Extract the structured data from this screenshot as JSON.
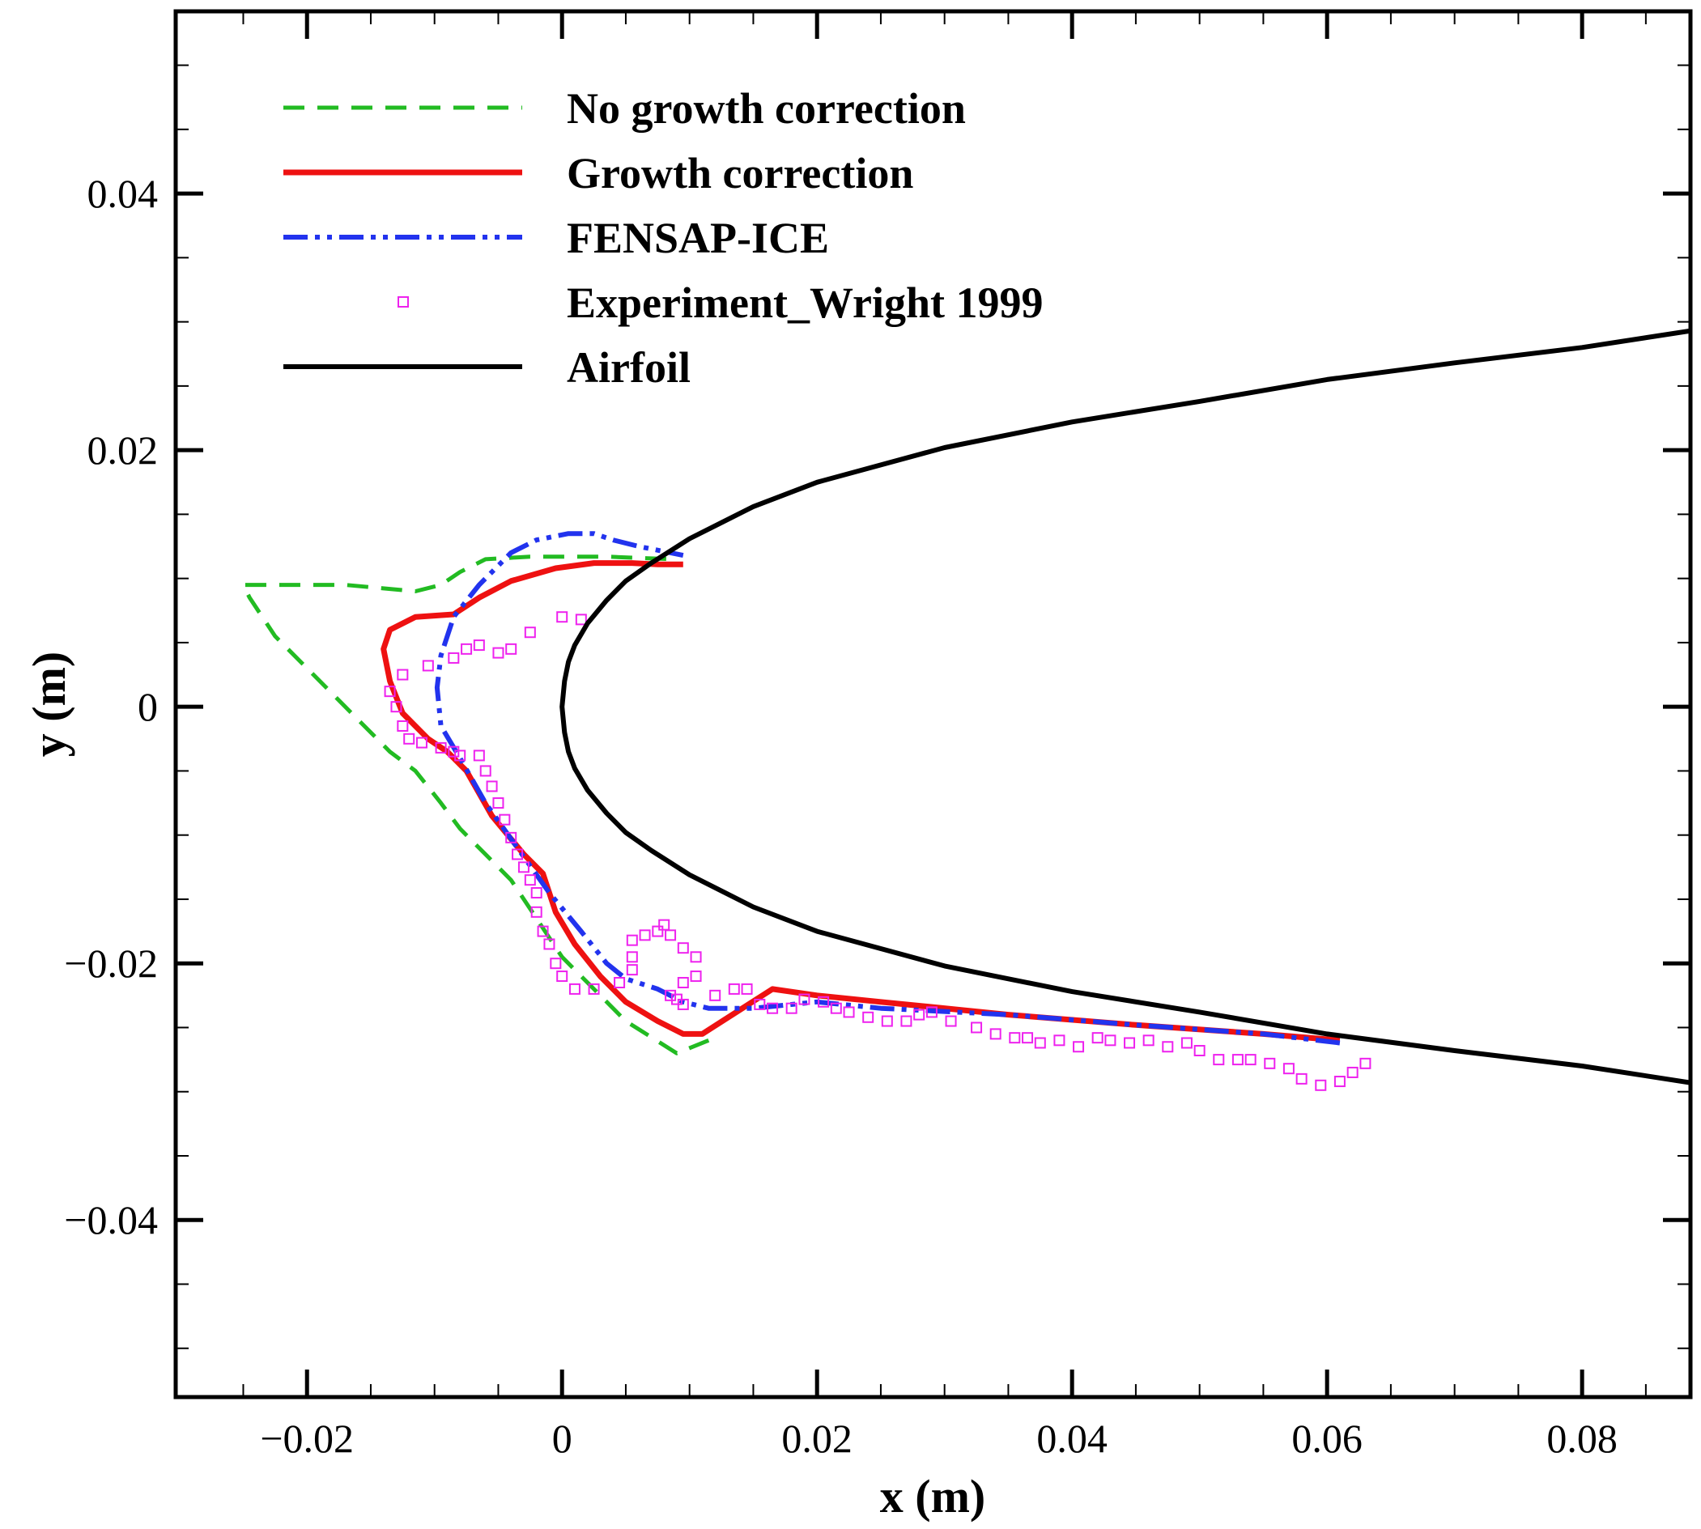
{
  "chart_data": {
    "type": "line",
    "title": "",
    "xlabel": "x (m)",
    "ylabel": "y (m)",
    "xlim": [
      -0.0303,
      0.0885
    ],
    "ylim": [
      -0.0538,
      0.0542
    ],
    "grid": false,
    "legend_position": "top-left",
    "x_major_ticks": [
      -0.02,
      0,
      0.02,
      0.04,
      0.06,
      0.08
    ],
    "x_tick_labels": [
      "−0.02",
      "0",
      "0.02",
      "0.04",
      "0.06",
      "0.08"
    ],
    "x_minor_ticks": [
      -0.025,
      -0.015,
      -0.01,
      -0.005,
      0.005,
      0.01,
      0.015,
      0.025,
      0.03,
      0.035,
      0.045,
      0.05,
      0.055,
      0.065,
      0.07,
      0.075,
      0.085
    ],
    "y_major_ticks": [
      -0.04,
      -0.02,
      0,
      0.02,
      0.04
    ],
    "y_tick_labels": [
      "−0.04",
      "−0.02",
      "0",
      "0.02",
      "0.04"
    ],
    "y_minor_ticks": [
      -0.05,
      -0.045,
      -0.035,
      -0.03,
      -0.025,
      -0.015,
      -0.01,
      -0.005,
      0.005,
      0.01,
      0.015,
      0.025,
      0.03,
      0.035,
      0.045,
      0.05
    ],
    "series": [
      {
        "name": "No growth correction",
        "color": "#22bb22",
        "style": "dashed",
        "x": [
          0.0115,
          0.009,
          0.005,
          0.002,
          0.0,
          -0.002,
          -0.004,
          -0.006,
          -0.008,
          -0.0095,
          -0.0115,
          -0.0135,
          -0.0165,
          -0.0195,
          -0.0225,
          -0.0245,
          -0.025,
          -0.0245,
          -0.021,
          -0.017,
          -0.0115,
          -0.0095,
          -0.008,
          -0.006,
          -0.0025,
          0.0,
          0.0035,
          0.006,
          0.009
        ],
        "y": [
          -0.026,
          -0.027,
          -0.0245,
          -0.0215,
          -0.0195,
          -0.0165,
          -0.0135,
          -0.0115,
          -0.0095,
          -0.0075,
          -0.005,
          -0.0035,
          -0.0005,
          0.0025,
          0.0055,
          0.0085,
          0.0095,
          0.0095,
          0.0095,
          0.0095,
          0.009,
          0.0095,
          0.0105,
          0.0115,
          0.0117,
          0.0117,
          0.0117,
          0.0116,
          0.0115
        ]
      },
      {
        "name": "Growth correction",
        "color": "#ee1111",
        "style": "solid",
        "x": [
          0.061,
          0.055,
          0.045,
          0.035,
          0.025,
          0.02,
          0.0165,
          0.011,
          0.0095,
          0.0075,
          0.005,
          0.003,
          0.001,
          -0.0005,
          -0.0015,
          -0.003,
          -0.0055,
          -0.0075,
          -0.009,
          -0.0105,
          -0.0125,
          -0.0135,
          -0.014,
          -0.0135,
          -0.0115,
          -0.0085,
          -0.0065,
          -0.004,
          -0.0005,
          0.0025,
          0.0055,
          0.0075,
          0.0095
        ],
        "y": [
          -0.026,
          -0.0255,
          -0.0248,
          -0.024,
          -0.023,
          -0.0225,
          -0.022,
          -0.0255,
          -0.0255,
          -0.0245,
          -0.023,
          -0.021,
          -0.0185,
          -0.016,
          -0.013,
          -0.0115,
          -0.0085,
          -0.005,
          -0.0035,
          -0.0025,
          -0.0005,
          0.002,
          0.0045,
          0.006,
          0.007,
          0.0072,
          0.0085,
          0.0098,
          0.0108,
          0.0112,
          0.0112,
          0.0111,
          0.0111
        ]
      },
      {
        "name": "FENSAP-ICE",
        "color": "#2233ee",
        "style": "dashdotdot",
        "x": [
          0.061,
          0.055,
          0.045,
          0.035,
          0.025,
          0.02,
          0.015,
          0.0115,
          0.0095,
          0.0075,
          0.005,
          0.0035,
          0.0015,
          -0.001,
          -0.0035,
          -0.006,
          -0.008,
          -0.0095,
          -0.0098,
          -0.0095,
          -0.0085,
          -0.0065,
          -0.004,
          -0.002,
          0.0005,
          0.0025,
          0.004,
          0.006,
          0.0095
        ],
        "y": [
          -0.0262,
          -0.0255,
          -0.0248,
          -0.024,
          -0.0235,
          -0.023,
          -0.0235,
          -0.0235,
          -0.023,
          -0.022,
          -0.0212,
          -0.02,
          -0.0175,
          -0.0145,
          -0.011,
          -0.0075,
          -0.004,
          -0.0015,
          0.0015,
          0.004,
          0.007,
          0.0095,
          0.012,
          0.013,
          0.0135,
          0.0135,
          0.013,
          0.0125,
          0.0118
        ]
      },
      {
        "name": "Experiment_Wright 1999",
        "color": "#ee22ee",
        "style": "markers",
        "marker": "square",
        "x": [
          0.0015,
          0.0,
          -0.0025,
          -0.004,
          -0.005,
          -0.0065,
          -0.0075,
          -0.0085,
          -0.0105,
          -0.0125,
          -0.0135,
          -0.013,
          -0.0125,
          -0.012,
          -0.011,
          -0.0095,
          -0.0085,
          -0.008,
          -0.0065,
          -0.006,
          -0.0055,
          -0.005,
          -0.0045,
          -0.004,
          -0.0035,
          -0.003,
          -0.0025,
          -0.002,
          -0.002,
          -0.0015,
          -0.001,
          -0.0005,
          0.0,
          0.001,
          0.0025,
          0.0045,
          0.0055,
          0.0055,
          0.0055,
          0.0065,
          0.0075,
          0.008,
          0.0085,
          0.0095,
          0.0105,
          0.0105,
          0.0095,
          0.009,
          0.0085,
          0.0095,
          0.012,
          0.0135,
          0.0145,
          0.0155,
          0.0165,
          0.018,
          0.019,
          0.0205,
          0.0215,
          0.0225,
          0.024,
          0.0255,
          0.027,
          0.028,
          0.029,
          0.0305,
          0.0325,
          0.034,
          0.0355,
          0.0365,
          0.0375,
          0.039,
          0.0405,
          0.042,
          0.043,
          0.0445,
          0.046,
          0.0475,
          0.049,
          0.05,
          0.0515,
          0.053,
          0.054,
          0.0555,
          0.057,
          0.058,
          0.0595,
          0.061,
          0.062,
          0.063
        ],
        "y": [
          0.0068,
          0.007,
          0.0058,
          0.0045,
          0.0042,
          0.0048,
          0.0045,
          0.0038,
          0.0032,
          0.0025,
          0.0012,
          0.0,
          -0.0015,
          -0.0025,
          -0.0028,
          -0.0032,
          -0.0035,
          -0.0038,
          -0.0038,
          -0.005,
          -0.0062,
          -0.0075,
          -0.0088,
          -0.0102,
          -0.0115,
          -0.0125,
          -0.0135,
          -0.0145,
          -0.016,
          -0.0175,
          -0.0185,
          -0.02,
          -0.021,
          -0.022,
          -0.022,
          -0.0215,
          -0.0205,
          -0.0195,
          -0.0182,
          -0.0178,
          -0.0175,
          -0.017,
          -0.0178,
          -0.0188,
          -0.0195,
          -0.021,
          -0.0215,
          -0.0228,
          -0.0225,
          -0.0232,
          -0.0225,
          -0.022,
          -0.022,
          -0.0232,
          -0.0235,
          -0.0235,
          -0.0228,
          -0.023,
          -0.0235,
          -0.0238,
          -0.0242,
          -0.0245,
          -0.0245,
          -0.024,
          -0.0238,
          -0.0245,
          -0.025,
          -0.0255,
          -0.0258,
          -0.0258,
          -0.0262,
          -0.026,
          -0.0265,
          -0.0258,
          -0.026,
          -0.0262,
          -0.026,
          -0.0265,
          -0.0262,
          -0.0268,
          -0.0275,
          -0.0275,
          -0.0275,
          -0.0278,
          -0.0282,
          -0.029,
          -0.0295,
          -0.0292,
          -0.0285,
          -0.0278
        ]
      },
      {
        "name": "Airfoil",
        "color": "#000000",
        "style": "solid",
        "x": [
          0.0885,
          0.08,
          0.07,
          0.06,
          0.05,
          0.04,
          0.03,
          0.02,
          0.015,
          0.01,
          0.007,
          0.005,
          0.0035,
          0.002,
          0.001,
          0.0005,
          0.0002,
          0.0,
          0.0002,
          0.0005,
          0.001,
          0.002,
          0.0035,
          0.005,
          0.007,
          0.01,
          0.015,
          0.02,
          0.03,
          0.04,
          0.05,
          0.06,
          0.07,
          0.08,
          0.0885
        ],
        "y": [
          0.0293,
          0.028,
          0.0268,
          0.0255,
          0.0238,
          0.0222,
          0.0202,
          0.0175,
          0.0156,
          0.0131,
          0.0112,
          0.0098,
          0.0083,
          0.0065,
          0.0048,
          0.0035,
          0.002,
          0.0,
          -0.002,
          -0.0035,
          -0.0048,
          -0.0065,
          -0.0083,
          -0.0098,
          -0.0112,
          -0.0131,
          -0.0156,
          -0.0175,
          -0.0202,
          -0.0222,
          -0.0238,
          -0.0255,
          -0.0268,
          -0.028,
          -0.0293
        ]
      }
    ]
  }
}
